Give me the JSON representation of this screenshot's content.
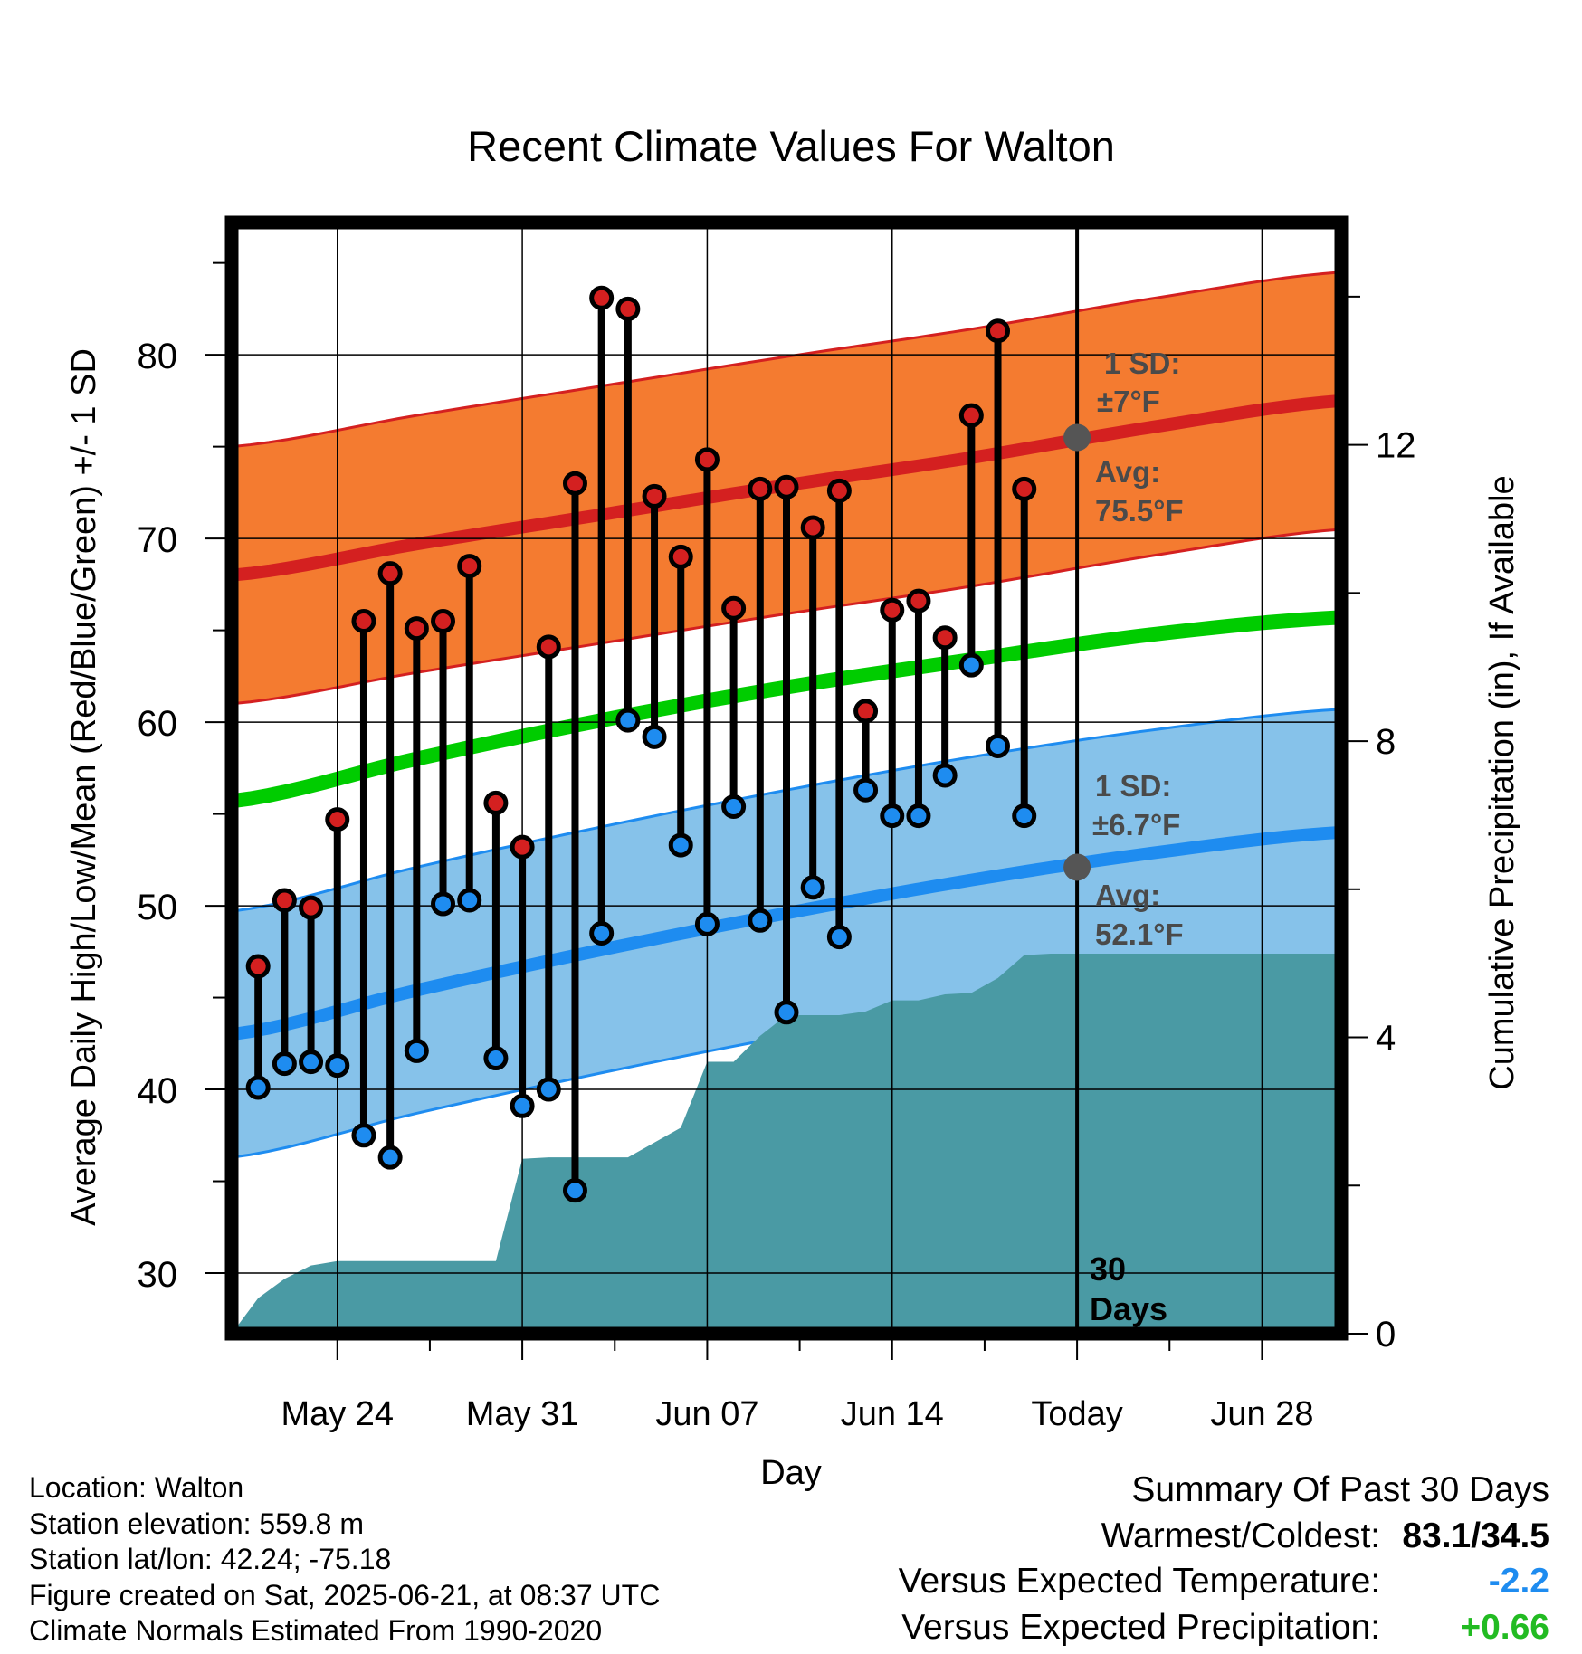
{
  "chart_data": {
    "type": "line",
    "title": "Recent Climate Values For Walton",
    "xlabel": "Day",
    "ylabel": "Average Daily High/Low/Mean (Red/Blue/Green) +/- 1 SD",
    "y2label": "Cumulative Precipitation (in), If Available",
    "ylim": [
      26.7,
      87.2
    ],
    "y_ticks": [
      "30",
      "40",
      "50",
      "60",
      "70",
      "80"
    ],
    "y2lim": [
      0,
      15.0
    ],
    "y2_ticks": [
      "0",
      "4",
      "8",
      "12"
    ],
    "xlim": [
      "2025-05-20",
      "2025-07-01"
    ],
    "x_tick_dates": [
      "2025-05-24",
      "2025-05-31",
      "2025-06-07",
      "2025-06-14",
      "2025-06-21",
      "2025-06-28"
    ],
    "x_tick_labels": [
      "May 24",
      "May 31",
      "Jun 07",
      "Jun 14",
      "Today",
      "Jun 28"
    ],
    "today": "2025-06-21",
    "colors": {
      "high_normal": "#d42020",
      "high_band": "#f47b30",
      "low_normal": "#1e8cf0",
      "low_band": "#86c2ea",
      "mean_normal": "#00cc00",
      "precip": "#4a9aa4",
      "hot_summary": "#000000",
      "cold_summary": "#1e8cf0",
      "wet_summary": "#22bb22"
    },
    "normals": {
      "x": [
        "2025-05-20",
        "2025-05-27",
        "2025-06-03",
        "2025-06-10",
        "2025-06-17",
        "2025-06-24",
        "2025-07-01"
      ],
      "high_avg": [
        68.0,
        69.7,
        71.3,
        72.9,
        74.4,
        76.1,
        77.5
      ],
      "high_sd": 7.0,
      "low_avg": [
        43.0,
        45.4,
        47.6,
        49.6,
        51.4,
        52.9,
        54.0
      ],
      "low_sd": 6.7,
      "mean_avg": [
        55.7,
        58.0,
        60.1,
        61.9,
        63.4,
        64.8,
        65.7
      ]
    },
    "series": [
      {
        "name": "Daily High",
        "dates": [
          "2025-05-21",
          "2025-05-22",
          "2025-05-23",
          "2025-05-24",
          "2025-05-25",
          "2025-05-26",
          "2025-05-27",
          "2025-05-28",
          "2025-05-29",
          "2025-05-30",
          "2025-05-31",
          "2025-06-01",
          "2025-06-02",
          "2025-06-03",
          "2025-06-04",
          "2025-06-05",
          "2025-06-06",
          "2025-06-07",
          "2025-06-08",
          "2025-06-09",
          "2025-06-10",
          "2025-06-11",
          "2025-06-12",
          "2025-06-13",
          "2025-06-14",
          "2025-06-15",
          "2025-06-16",
          "2025-06-17",
          "2025-06-18",
          "2025-06-19",
          "2025-06-20"
        ],
        "values": [
          46.7,
          50.3,
          49.9,
          54.7,
          65.5,
          68.1,
          65.1,
          65.5,
          68.5,
          55.6,
          53.2,
          64.1,
          73.0,
          83.1,
          82.5,
          72.3,
          69.0,
          74.3,
          66.2,
          72.7,
          72.8,
          70.6,
          72.6,
          60.6,
          66.1,
          66.6,
          64.6,
          76.7,
          81.3,
          72.7,
          null
        ]
      },
      {
        "name": "Daily Low",
        "dates": [
          "2025-05-21",
          "2025-05-22",
          "2025-05-23",
          "2025-05-24",
          "2025-05-25",
          "2025-05-26",
          "2025-05-27",
          "2025-05-28",
          "2025-05-29",
          "2025-05-30",
          "2025-05-31",
          "2025-06-01",
          "2025-06-02",
          "2025-06-03",
          "2025-06-04",
          "2025-06-05",
          "2025-06-06",
          "2025-06-07",
          "2025-06-08",
          "2025-06-09",
          "2025-06-10",
          "2025-06-11",
          "2025-06-12",
          "2025-06-13",
          "2025-06-14",
          "2025-06-15",
          "2025-06-16",
          "2025-06-17",
          "2025-06-18",
          "2025-06-19",
          "2025-06-20"
        ],
        "values": [
          40.1,
          41.4,
          41.5,
          41.3,
          37.5,
          36.3,
          42.1,
          50.1,
          50.3,
          41.7,
          39.1,
          40.0,
          34.5,
          48.5,
          60.1,
          59.2,
          53.3,
          49.0,
          55.4,
          49.2,
          44.2,
          51.0,
          48.3,
          56.3,
          54.9,
          54.9,
          57.1,
          63.1,
          58.7,
          54.9,
          null
        ]
      },
      {
        "name": "Cumulative Precipitation",
        "dates": [
          "2025-05-20",
          "2025-05-21",
          "2025-05-22",
          "2025-05-23",
          "2025-05-24",
          "2025-05-25",
          "2025-05-26",
          "2025-05-27",
          "2025-05-28",
          "2025-05-29",
          "2025-05-30",
          "2025-05-31",
          "2025-06-01",
          "2025-06-02",
          "2025-06-03",
          "2025-06-04",
          "2025-06-05",
          "2025-06-06",
          "2025-06-07",
          "2025-06-08",
          "2025-06-09",
          "2025-06-10",
          "2025-06-11",
          "2025-06-12",
          "2025-06-13",
          "2025-06-14",
          "2025-06-15",
          "2025-06-16",
          "2025-06-17",
          "2025-06-18",
          "2025-06-19",
          "2025-06-20",
          "2025-06-21",
          "2025-07-01"
        ],
        "values": [
          0.0,
          0.48,
          0.74,
          0.92,
          0.98,
          0.98,
          0.98,
          0.98,
          0.98,
          0.98,
          0.98,
          2.36,
          2.38,
          2.38,
          2.38,
          2.38,
          2.58,
          2.78,
          3.67,
          3.67,
          4.02,
          4.3,
          4.3,
          4.3,
          4.35,
          4.5,
          4.5,
          4.58,
          4.6,
          4.8,
          5.11,
          5.13,
          5.13,
          5.13
        ]
      }
    ],
    "annotations": {
      "high_sd_title": "1 SD:",
      "high_sd_value": "±7°F",
      "high_avg_title": "Avg:",
      "high_avg_value": "75.5°F",
      "high_avg_marker": 75.5,
      "low_sd_title": "1 SD:",
      "low_sd_value": "±6.7°F",
      "low_avg_title": "Avg:",
      "low_avg_value": "52.1°F",
      "low_avg_marker": 52.1,
      "days_number": "30",
      "days_word": "Days"
    }
  },
  "station_info": {
    "location": "Location: Walton",
    "elevation": "Station elevation: 559.8 m",
    "latlon": "Station lat/lon: 42.24; -75.18",
    "created": "Figure created on Sat, 2025-06-21, at 08:37 UTC",
    "normals": "Climate Normals Estimated From 1990-2020"
  },
  "summary": {
    "title": "Summary Of Past 30 Days",
    "warmest_label": "Warmest/Coldest:",
    "warmest_value": "83.1/34.5",
    "temp_label": "Versus Expected Temperature:",
    "temp_value": "-2.2",
    "precip_label": "Versus Expected Precipitation:",
    "precip_value": "+0.66"
  }
}
